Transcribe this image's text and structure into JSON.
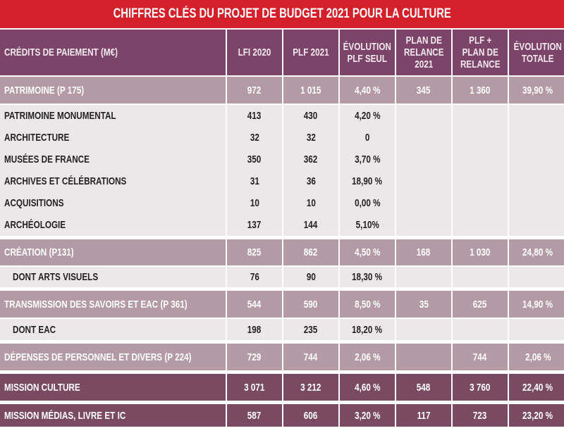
{
  "title": "CHIFFRES CLÉS DU PROJET DE BUDGET 2021 POUR LA CULTURE",
  "colors": {
    "title_bg": "#d4202a",
    "header_bg": "#7b4468",
    "main_row_bg": "#b39aa5",
    "sub_row_bg": "#ece8ea",
    "total_row_bg": "#7a4a62"
  },
  "headers": [
    "CRÉDITS DE PAIEMENT (M€)",
    "LFI 2020",
    "PLF 2021",
    "ÉVOLUTION\nPLF SEUL",
    "PLAN DE\nRELANCE\n2021",
    "PLF +\nPLAN DE\nRELANCE",
    "ÉVOLUTION\nTOTALE"
  ],
  "rows": [
    {
      "kind": "main",
      "cells": [
        "PATRIMOINE (P 175)",
        "972",
        "1 015",
        "4,40 %",
        "345",
        "1 360",
        "39,90 %"
      ]
    },
    {
      "kind": "sub",
      "cells": [
        "PATRIMOINE MONUMENTAL",
        "413",
        "430",
        "4,20 %",
        "",
        "",
        ""
      ]
    },
    {
      "kind": "sub",
      "cells": [
        "ARCHITECTURE",
        "32",
        "32",
        "0",
        "",
        "",
        ""
      ]
    },
    {
      "kind": "sub",
      "cells": [
        "MUSÉES DE FRANCE",
        "350",
        "362",
        "3,70 %",
        "",
        "",
        ""
      ]
    },
    {
      "kind": "sub",
      "cells": [
        "ARCHIVES ET CÉLÉBRATIONS",
        "31",
        "36",
        "18,90 %",
        "",
        "",
        ""
      ]
    },
    {
      "kind": "sub",
      "cells": [
        "ACQUISITIONS",
        "10",
        "10",
        "0,00 %",
        "",
        "",
        ""
      ]
    },
    {
      "kind": "sub",
      "cells": [
        "ARCHÉOLOGIE",
        "137",
        "144",
        "5,10%",
        "",
        "",
        ""
      ]
    },
    {
      "kind": "main",
      "cells": [
        "CRÉATION (P131)",
        "825",
        "862",
        "4,50 %",
        "168",
        "1 030",
        "24,80 %"
      ]
    },
    {
      "kind": "sub ind",
      "cells": [
        "DONT ARTS VISUELS",
        "76",
        "90",
        "18,30 %",
        "",
        "",
        ""
      ]
    },
    {
      "kind": "main",
      "cells": [
        "TRANSMISSION DES SAVOIRS ET EAC (P 361)",
        "544",
        "590",
        "8,50 %",
        "35",
        "625",
        "14,90 %"
      ]
    },
    {
      "kind": "sub ind",
      "cells": [
        "DONT EAC",
        "198",
        "235",
        "18,20 %",
        "",
        "",
        ""
      ]
    },
    {
      "kind": "main",
      "cells": [
        "DÉPENSES DE PERSONNEL ET DIVERS (P 224)",
        "729",
        "744",
        "2,06 %",
        "",
        "744",
        "2,06 %"
      ]
    },
    {
      "kind": "tot",
      "cells": [
        "MISSION CULTURE",
        "3 071",
        "3 212",
        "4,60 %",
        "548",
        "3 760",
        "22,40 %"
      ]
    },
    {
      "kind": "tot",
      "cells": [
        "MISSION MÉDIAS, LIVRE ET IC",
        "587",
        "606",
        "3,20 %",
        "117",
        "723",
        "23,20 %"
      ]
    }
  ]
}
